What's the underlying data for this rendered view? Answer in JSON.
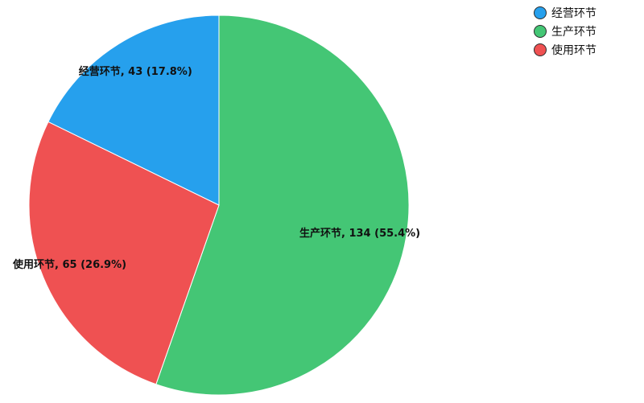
{
  "chart_data": {
    "type": "pie",
    "start_angle_deg": 0,
    "direction": "clockwise",
    "order": [
      "生产环节",
      "使用环节",
      "经营环节"
    ],
    "slices": [
      {
        "name": "经营环节",
        "value": 43,
        "percent": 17.8,
        "color": "#26a0ed",
        "label": "经营环节, 43 (17.8%)"
      },
      {
        "name": "生产环节",
        "value": 134,
        "percent": 55.4,
        "color": "#44c675",
        "label": "生产环节, 134 (55.4%)"
      },
      {
        "name": "使用环节",
        "value": 65,
        "percent": 26.9,
        "color": "#ef5152",
        "label": "使用环节, 65 (26.9%)"
      }
    ],
    "legend": {
      "placement": "top-right",
      "items": [
        "经营环节",
        "生产环节",
        "使用环节"
      ]
    }
  }
}
